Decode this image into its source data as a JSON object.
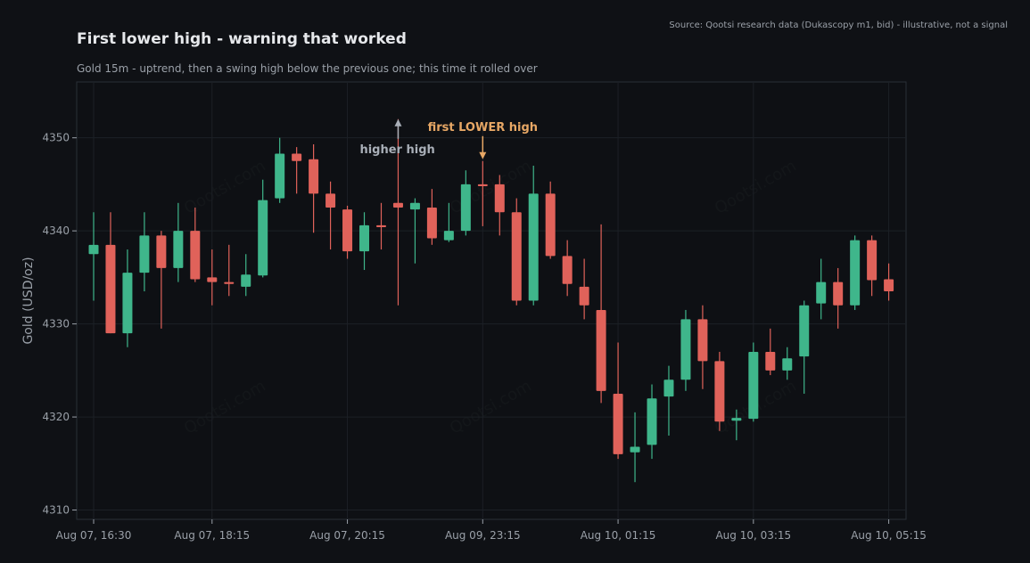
{
  "header": {
    "title": "First lower high - warning that worked",
    "subtitle": "Gold 15m - uptrend, then a swing high below the previous one; this time it rolled over",
    "source": "Source: Qootsi research data (Dukascopy m1, bid) - illustrative, not a signal"
  },
  "watermark_text": "Qootsi.com",
  "colors": {
    "background": "#0f1115",
    "plot_background": "#0d1014",
    "grid": "#1c2026",
    "up": "#3fb68b",
    "down": "#e0625a",
    "higher_high_annotation": "#a9afb8",
    "lower_high_annotation": "#e7a765"
  },
  "chart_data": {
    "type": "candlestick",
    "title": "First lower high - warning that worked",
    "subtitle": "Gold 15m - uptrend, then a swing high below the previous one; this time it rolled over",
    "ylabel": "Gold (USD/oz)",
    "xlabel": "",
    "ylim": [
      4309,
      4356
    ],
    "yticks": [
      4310,
      4320,
      4330,
      4340,
      4350
    ],
    "xtick_labels": [
      {
        "index": 0,
        "label": "Aug 07, 16:30"
      },
      {
        "index": 7,
        "label": "Aug 07, 18:15"
      },
      {
        "index": 15,
        "label": "Aug 07, 20:15"
      },
      {
        "index": 23,
        "label": "Aug 09, 23:15"
      },
      {
        "index": 31,
        "label": "Aug 10, 01:15"
      },
      {
        "index": 39,
        "label": "Aug 10, 03:15"
      },
      {
        "index": 47,
        "label": "Aug 10, 05:15"
      }
    ],
    "grid": true,
    "candles": [
      {
        "o": 4337.5,
        "h": 4342.0,
        "l": 4332.5,
        "c": 4338.5
      },
      {
        "o": 4338.5,
        "h": 4342.0,
        "l": 4329.0,
        "c": 4329.0
      },
      {
        "o": 4329.0,
        "h": 4338.0,
        "l": 4327.5,
        "c": 4335.5
      },
      {
        "o": 4335.5,
        "h": 4342.0,
        "l": 4333.5,
        "c": 4339.5
      },
      {
        "o": 4339.5,
        "h": 4340.0,
        "l": 4329.5,
        "c": 4336.0
      },
      {
        "o": 4336.0,
        "h": 4343.0,
        "l": 4334.5,
        "c": 4340.0
      },
      {
        "o": 4340.0,
        "h": 4342.5,
        "l": 4334.5,
        "c": 4334.8
      },
      {
        "o": 4335.0,
        "h": 4338.0,
        "l": 4332.0,
        "c": 4334.5
      },
      {
        "o": 4334.5,
        "h": 4338.5,
        "l": 4333.0,
        "c": 4334.3
      },
      {
        "o": 4334.0,
        "h": 4337.5,
        "l": 4333.0,
        "c": 4335.3
      },
      {
        "o": 4335.2,
        "h": 4345.5,
        "l": 4335.0,
        "c": 4343.3
      },
      {
        "o": 4343.5,
        "h": 4350.0,
        "l": 4343.0,
        "c": 4348.3
      },
      {
        "o": 4348.3,
        "h": 4349.0,
        "l": 4344.0,
        "c": 4347.5
      },
      {
        "o": 4347.7,
        "h": 4349.3,
        "l": 4339.8,
        "c": 4344.0
      },
      {
        "o": 4344.0,
        "h": 4345.3,
        "l": 4338.0,
        "c": 4342.5
      },
      {
        "o": 4342.3,
        "h": 4342.7,
        "l": 4337.0,
        "c": 4337.8
      },
      {
        "o": 4337.8,
        "h": 4342.0,
        "l": 4335.8,
        "c": 4340.6
      },
      {
        "o": 4340.6,
        "h": 4343.0,
        "l": 4338.0,
        "c": 4340.4
      },
      {
        "o": 4343.0,
        "h": 4352.0,
        "l": 4332.0,
        "c": 4342.5
      },
      {
        "o": 4342.3,
        "h": 4343.5,
        "l": 4336.5,
        "c": 4343.0
      },
      {
        "o": 4342.5,
        "h": 4344.5,
        "l": 4338.5,
        "c": 4339.2
      },
      {
        "o": 4339.0,
        "h": 4343.0,
        "l": 4338.8,
        "c": 4340.0
      },
      {
        "o": 4340.0,
        "h": 4346.5,
        "l": 4339.5,
        "c": 4345.0
      },
      {
        "o": 4345.0,
        "h": 4347.5,
        "l": 4340.5,
        "c": 4344.8
      },
      {
        "o": 4345.0,
        "h": 4346.0,
        "l": 4339.5,
        "c": 4342.0
      },
      {
        "o": 4342.0,
        "h": 4343.5,
        "l": 4332.0,
        "c": 4332.5
      },
      {
        "o": 4332.5,
        "h": 4347.0,
        "l": 4332.0,
        "c": 4344.0
      },
      {
        "o": 4344.0,
        "h": 4345.3,
        "l": 4337.0,
        "c": 4337.3
      },
      {
        "o": 4337.3,
        "h": 4339.0,
        "l": 4333.0,
        "c": 4334.3
      },
      {
        "o": 4334.0,
        "h": 4337.0,
        "l": 4330.5,
        "c": 4332.0
      },
      {
        "o": 4331.5,
        "h": 4340.7,
        "l": 4321.5,
        "c": 4322.8
      },
      {
        "o": 4322.5,
        "h": 4328.0,
        "l": 4315.5,
        "c": 4316.0
      },
      {
        "o": 4316.2,
        "h": 4320.5,
        "l": 4313.0,
        "c": 4316.8
      },
      {
        "o": 4317.0,
        "h": 4323.5,
        "l": 4315.5,
        "c": 4322.0
      },
      {
        "o": 4322.2,
        "h": 4325.5,
        "l": 4318.0,
        "c": 4324.0
      },
      {
        "o": 4324.0,
        "h": 4331.5,
        "l": 4322.8,
        "c": 4330.5
      },
      {
        "o": 4330.5,
        "h": 4332.0,
        "l": 4323.0,
        "c": 4326.0
      },
      {
        "o": 4326.0,
        "h": 4327.0,
        "l": 4318.5,
        "c": 4319.5
      },
      {
        "o": 4319.6,
        "h": 4320.8,
        "l": 4317.5,
        "c": 4319.9
      },
      {
        "o": 4319.8,
        "h": 4328.0,
        "l": 4319.5,
        "c": 4327.0
      },
      {
        "o": 4327.0,
        "h": 4329.5,
        "l": 4324.5,
        "c": 4325.0
      },
      {
        "o": 4325.0,
        "h": 4327.5,
        "l": 4324.0,
        "c": 4326.3
      },
      {
        "o": 4326.5,
        "h": 4332.5,
        "l": 4322.5,
        "c": 4332.0
      },
      {
        "o": 4332.2,
        "h": 4337.0,
        "l": 4330.5,
        "c": 4334.5
      },
      {
        "o": 4334.5,
        "h": 4336.0,
        "l": 4329.5,
        "c": 4332.0
      },
      {
        "o": 4332.0,
        "h": 4339.5,
        "l": 4331.5,
        "c": 4339.0
      },
      {
        "o": 4339.0,
        "h": 4339.5,
        "l": 4333.0,
        "c": 4334.7
      },
      {
        "o": 4334.8,
        "h": 4336.5,
        "l": 4332.5,
        "c": 4333.5
      }
    ],
    "annotations": [
      {
        "text": "higher high",
        "index": 18,
        "price": 4352.0,
        "arrow": "up"
      },
      {
        "text": "first LOWER high",
        "index": 23,
        "price": 4347.5,
        "arrow": "down"
      }
    ]
  }
}
